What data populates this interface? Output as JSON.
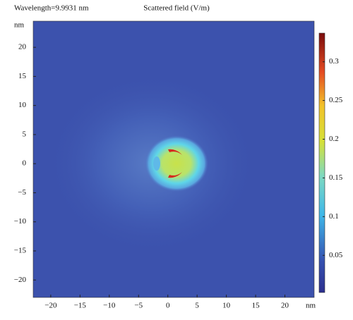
{
  "chart_data": {
    "type": "heatmap",
    "title": "Scattered field (V/m)",
    "subtitle": "Wavelength=9.9931 nm",
    "x_label": "nm",
    "y_label": "nm",
    "xlim": [
      -23,
      25
    ],
    "ylim": [
      -23,
      24.5
    ],
    "xticks": [
      {
        "value": -20,
        "label": "−20"
      },
      {
        "value": -15,
        "label": "−15"
      },
      {
        "value": -10,
        "label": "−10"
      },
      {
        "value": -5,
        "label": "−5"
      },
      0,
      5,
      10,
      15,
      20
    ],
    "yticks": [
      {
        "value": -20,
        "label": "−20"
      },
      {
        "value": -15,
        "label": "−15"
      },
      {
        "value": -10,
        "label": "−10"
      },
      {
        "value": -5,
        "label": "−5"
      },
      0,
      5,
      10,
      15,
      20
    ],
    "colorbar": {
      "lim": [
        0.002,
        0.337
      ],
      "ticks": [
        0.05,
        0.1,
        0.15,
        0.2,
        0.25,
        0.3
      ]
    }
  }
}
